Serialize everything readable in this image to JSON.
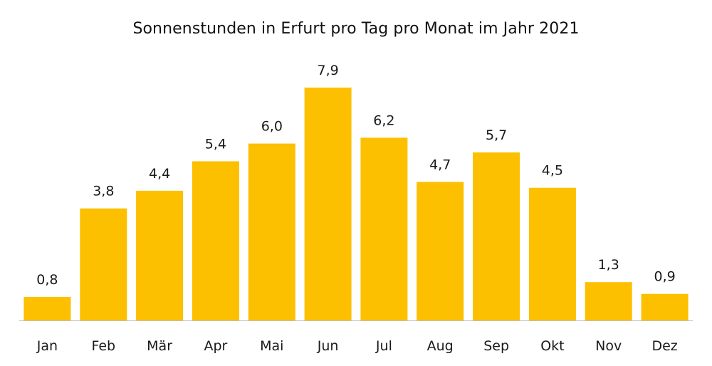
{
  "chart_data": {
    "type": "bar",
    "title": "Sonnenstunden in Erfurt pro Tag pro Monat im Jahr 2021",
    "xlabel": "",
    "ylabel": "",
    "categories": [
      "Jan",
      "Feb",
      "Mär",
      "Apr",
      "Mai",
      "Jun",
      "Jul",
      "Aug",
      "Sep",
      "Okt",
      "Nov",
      "Dez"
    ],
    "values": [
      0.8,
      3.8,
      4.4,
      5.4,
      6.0,
      7.9,
      6.2,
      4.7,
      5.7,
      4.5,
      1.3,
      0.9
    ],
    "value_labels": [
      "0,8",
      "3,8",
      "4,4",
      "5,4",
      "6,0",
      "7,9",
      "6,2",
      "4,7",
      "5,7",
      "4,5",
      "1,3",
      "0,9"
    ],
    "ylim": [
      0,
      7.9
    ],
    "grid": false,
    "legend": "none",
    "bar_color": "#FCC000",
    "axis_color": "#bfbfbf"
  }
}
